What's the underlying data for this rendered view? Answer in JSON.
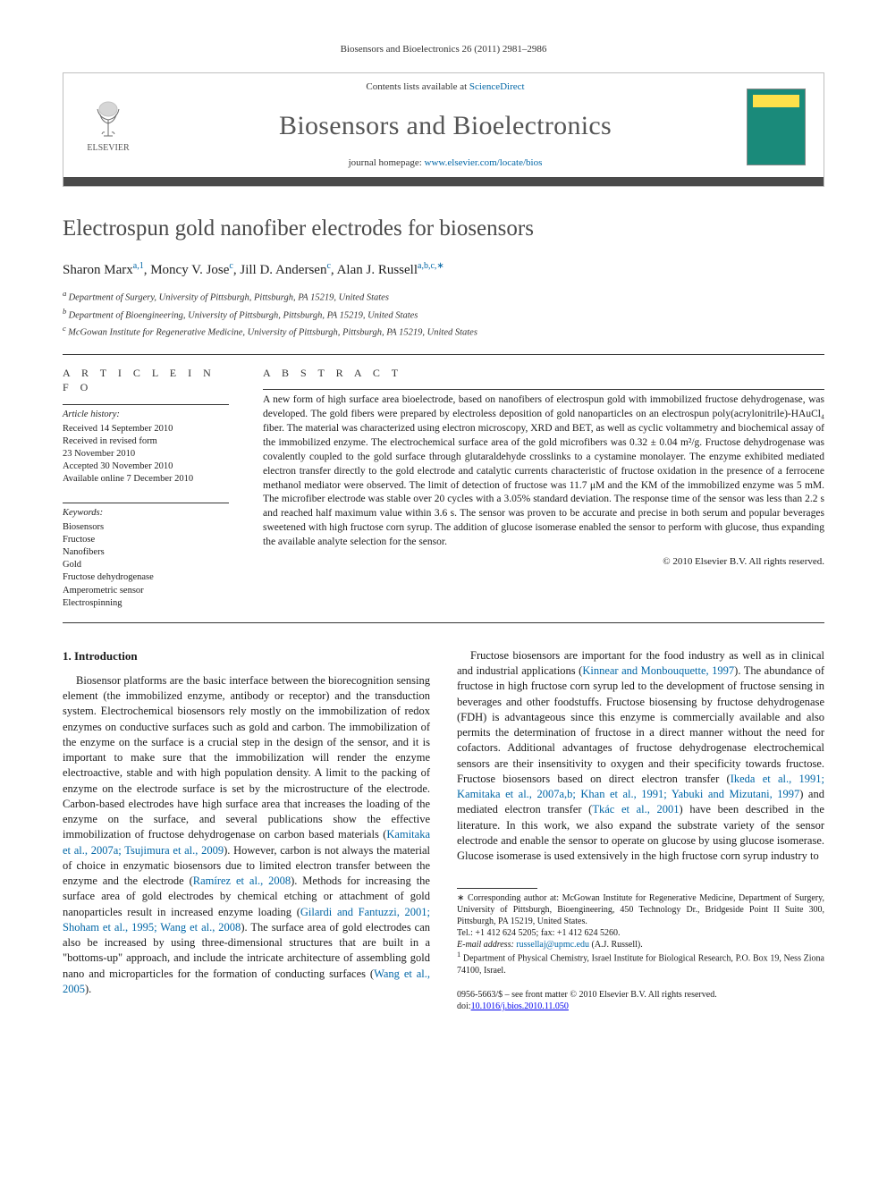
{
  "topline": "Biosensors and Bioelectronics 26 (2011) 2981–2986",
  "header": {
    "logo_label": "ELSEVIER",
    "contents_prefix": "Contents lists available at ",
    "contents_link": "ScienceDirect",
    "journal": "Biosensors and Bioelectronics",
    "homepage_prefix": "journal homepage: ",
    "homepage_url": "www.elsevier.com/locate/bios"
  },
  "title": "Electrospun gold nanofiber electrodes for biosensors",
  "authors_html": "Sharon Marx|a,1|, Moncy V. Jose|c|, Jill D. Andersen|c|, Alan J. Russell|a,b,c,*|",
  "authors": [
    {
      "name": "Sharon Marx",
      "sup": "a,1"
    },
    {
      "name": "Moncy V. Jose",
      "sup": "c"
    },
    {
      "name": "Jill D. Andersen",
      "sup": "c"
    },
    {
      "name": "Alan J. Russell",
      "sup": "a,b,c,",
      "star": true
    }
  ],
  "affiliations": [
    {
      "key": "a",
      "text": "Department of Surgery, University of Pittsburgh, Pittsburgh, PA 15219, United States"
    },
    {
      "key": "b",
      "text": "Department of Bioengineering, University of Pittsburgh, Pittsburgh, PA 15219, United States"
    },
    {
      "key": "c",
      "text": "McGowan Institute for Regenerative Medicine, University of Pittsburgh, Pittsburgh, PA 15219, United States"
    }
  ],
  "info_heading": "A R T I C L E   I N F O",
  "abs_heading": "A B S T R A C T",
  "history_head": "Article history:",
  "history": [
    "Received 14 September 2010",
    "Received in revised form",
    "23 November 2010",
    "Accepted 30 November 2010",
    "Available online 7 December 2010"
  ],
  "keywords_head": "Keywords:",
  "keywords": [
    "Biosensors",
    "Fructose",
    "Nanofibers",
    "Gold",
    "Fructose dehydrogenase",
    "Amperometric sensor",
    "Electrospinning"
  ],
  "abstract": "A new form of high surface area bioelectrode, based on nanofibers of electrospun gold with immobilized fructose dehydrogenase, was developed. The gold fibers were prepared by electroless deposition of gold nanoparticles on an electrospun poly(acrylonitrile)-HAuCl₄ fiber. The material was characterized using electron microscopy, XRD and BET, as well as cyclic voltammetry and biochemical assay of the immobilized enzyme. The electrochemical surface area of the gold microfibers was 0.32 ± 0.04 m²/g. Fructose dehydrogenase was covalently coupled to the gold surface through glutaraldehyde crosslinks to a cystamine monolayer. The enzyme exhibited mediated electron transfer directly to the gold electrode and catalytic currents characteristic of fructose oxidation in the presence of a ferrocene methanol mediator were observed. The limit of detection of fructose was 11.7 μM and the KM of the immobilized enzyme was 5 mM. The microfiber electrode was stable over 20 cycles with a 3.05% standard deviation. The response time of the sensor was less than 2.2 s and reached half maximum value within 3.6 s. The sensor was proven to be accurate and precise in both serum and popular beverages sweetened with high fructose corn syrup. The addition of glucose isomerase enabled the sensor to perform with glucose, thus expanding the available analyte selection for the sensor.",
  "copyright": "© 2010 Elsevier B.V. All rights reserved.",
  "section_head": "1.  Introduction",
  "body": {
    "p1a": "Biosensor platforms are the basic interface between the biorecognition sensing element (the immobilized enzyme, antibody or receptor) and the transduction system. Electrochemical biosensors rely mostly on the immobilization of redox enzymes on conductive surfaces such as gold and carbon. The immobilization of the enzyme on the surface is a crucial step in the design of the sensor, and it is important to make sure that the immobilization will render the enzyme electroactive, stable and with high population density. A limit to the packing of enzyme on the electrode surface is set by the microstructure of the electrode. Carbon-based electrodes have high surface area that increases the loading of the enzyme on the surface, and several publications show the effective immobilization of fructose dehydrogenase on carbon based materials (",
    "p1_ref1": "Kamitaka et al., 2007a; Tsujimura et al., 2009",
    "p1b": "). However, carbon is not always the material of choice in enzymatic biosensors due to",
    "p2a": "limited electron transfer between the enzyme and the electrode (",
    "p2_ref1": "Ramírez et al., 2008",
    "p2b": "). Methods for increasing the surface area of gold electrodes by chemical etching or attachment of gold nanoparticles result in increased enzyme loading (",
    "p2_ref2": "Gilardi and Fantuzzi, 2001; Shoham et al., 1995; Wang et al., 2008",
    "p2c": "). The surface area of gold electrodes can also be increased by using three-dimensional structures that are built in a \"bottoms-up\" approach, and include the intricate architecture of assembling gold nano and microparticles for the formation of conducting surfaces (",
    "p2_ref3": "Wang et al., 2005",
    "p2d": ").",
    "p3a": "Fructose biosensors are important for the food industry as well as in clinical and industrial applications (",
    "p3_ref1": "Kinnear and Monbouquette, 1997",
    "p3b": "). The abundance of fructose in high fructose corn syrup led to the development of fructose sensing in beverages and other foodstuffs. Fructose biosensing by fructose dehydrogenase (FDH) is advantageous since this enzyme is commercially available and also permits the determination of fructose in a direct manner without the need for cofactors. Additional advantages of fructose dehydrogenase electrochemical sensors are their insensitivity to oxygen and their specificity towards fructose. Fructose biosensors based on direct electron transfer (",
    "p3_ref2": "Ikeda et al., 1991; Kamitaka et al., 2007a,b; Khan et al., 1991; Yabuki and Mizutani, 1997",
    "p3c": ") and mediated electron transfer (",
    "p3_ref3": "Tkác et al., 2001",
    "p3d": ") have been described in the literature. In this work, we also expand the substrate variety of the sensor electrode and enable the sensor to operate on glucose by using glucose isomerase. Glucose isomerase is used extensively in the high fructose corn syrup industry to"
  },
  "footnotes": {
    "corr_star": "∗",
    "corr": " Corresponding author at: McGowan Institute for Regenerative Medicine, Department of Surgery, University of Pittsburgh, Bioengineering, 450 Technology Dr., Bridgeside Point II Suite 300, Pittsburgh, PA 15219, United States.",
    "tel": "Tel.: +1 412 624 5205; fax: +1 412 624 5260.",
    "email_label": "E-mail address: ",
    "email": "russellaj@upmc.edu",
    "email_who": " (A.J. Russell).",
    "fn1_sup": "1",
    "fn1": " Department of Physical Chemistry, Israel Institute for Biological Research, P.O. Box 19, Ness Ziona 74100, Israel."
  },
  "pub": {
    "line1": "0956-5663/$ – see front matter © 2010 Elsevier B.V. All rights reserved.",
    "doi_label": "doi:",
    "doi": "10.1016/j.bios.2010.11.050"
  },
  "colors": {
    "link": "#0066a6",
    "title_gray": "#4a4a4a",
    "cover_bg": "#1a8a7a"
  }
}
